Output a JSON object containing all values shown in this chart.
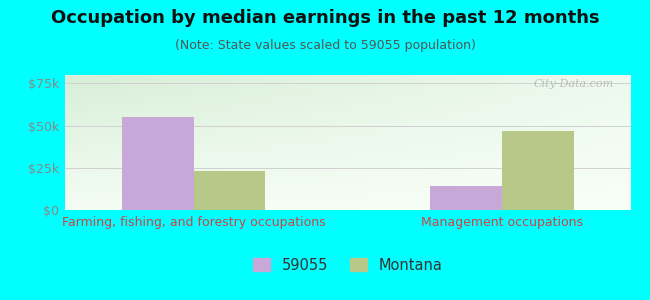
{
  "title": "Occupation by median earnings in the past 12 months",
  "subtitle": "(Note: State values scaled to 59055 population)",
  "background_color": "#00FFFF",
  "plot_bg_color_topleft": "#d4ecd4",
  "plot_bg_color_bottomright": "#f5fff5",
  "categories": [
    "Farming, fishing, and forestry occupations",
    "Management occupations"
  ],
  "series": [
    {
      "label": "59055",
      "color": "#c8a8d8",
      "values": [
        55000,
        14000
      ]
    },
    {
      "label": "Montana",
      "color": "#b8c888",
      "values": [
        23000,
        47000
      ]
    }
  ],
  "ylim": [
    0,
    80000
  ],
  "yticks": [
    0,
    25000,
    50000,
    75000
  ],
  "ytick_labels": [
    "$0",
    "$25k",
    "$50k",
    "$75k"
  ],
  "bar_width": 0.28,
  "group_positions": [
    0.4,
    1.6
  ],
  "xlim": [
    -0.1,
    2.1
  ],
  "title_fontsize": 13,
  "subtitle_fontsize": 9,
  "tick_fontsize": 9,
  "xlabel_fontsize": 9,
  "watermark": "City-Data.com",
  "grid_color": "#d0d0d0",
  "tick_color": "#888888",
  "label_color": "#cc4444"
}
